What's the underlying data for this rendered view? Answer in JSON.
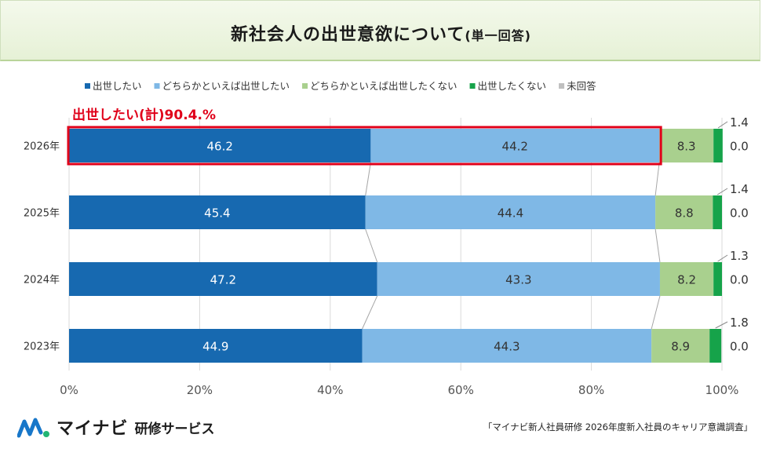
{
  "title": {
    "main": "新社会人の出世意欲について",
    "sub": "(単一回答)"
  },
  "highlight_label": "出世したい(計)90.4.%",
  "colors": {
    "series": [
      "#1769b0",
      "#7fb8e6",
      "#a9d08e",
      "#16a34a",
      "#bfbfbf"
    ],
    "highlight": "#e0001a"
  },
  "chart_data": {
    "type": "bar",
    "orientation": "horizontal",
    "stacked": true,
    "categories": [
      "2026年",
      "2025年",
      "2024年",
      "2023年"
    ],
    "series": [
      {
        "name": "出世したい",
        "values": [
          46.2,
          45.4,
          47.2,
          44.9
        ]
      },
      {
        "name": "どちらかといえば出世したい",
        "values": [
          44.2,
          44.4,
          43.3,
          44.3
        ]
      },
      {
        "name": "どちらかといえば出世したくない",
        "values": [
          8.3,
          8.8,
          8.2,
          8.9
        ]
      },
      {
        "name": "出世したくない",
        "values": [
          1.4,
          1.4,
          1.3,
          1.8
        ]
      },
      {
        "name": "未回答",
        "values": [
          0.0,
          0.0,
          0.0,
          0.0
        ]
      }
    ],
    "xlim": [
      0,
      100
    ],
    "xticks": [
      "0%",
      "20%",
      "40%",
      "60%",
      "80%",
      "100%"
    ],
    "grid": true,
    "legend_position": "top"
  },
  "logo": {
    "brand": "マイナビ",
    "service": "研修サービス"
  },
  "source": "「マイナビ新人社員研修 2026年度新入社員のキャリア意識調査」"
}
